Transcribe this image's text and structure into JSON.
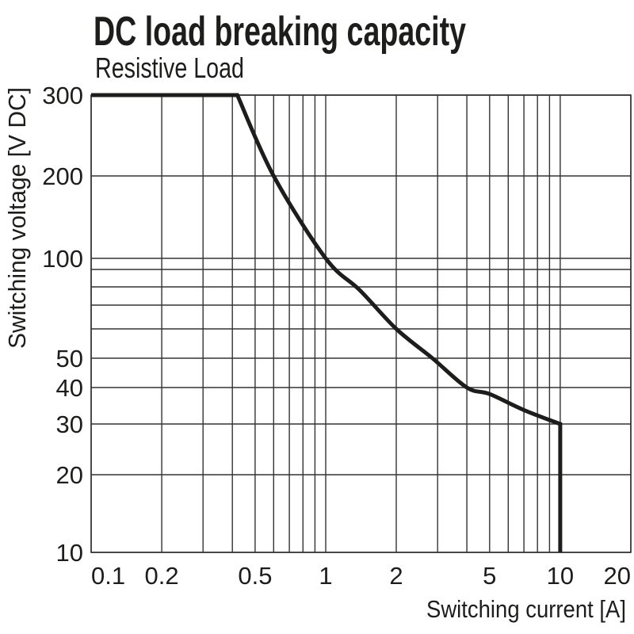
{
  "title": "DC load breaking capacity",
  "subtitle": "Resistive Load",
  "colors": {
    "text": "#1d1d1b",
    "grid": "#333333",
    "curve": "#1d1d1b",
    "background": "#ffffff"
  },
  "chart_data": {
    "type": "line",
    "title": "DC load breaking capacity",
    "subtitle": "Resistive Load",
    "grid": true,
    "legend": false,
    "x_axis": {
      "label": "Switching current [A]",
      "scale": "log",
      "range": [
        0.1,
        20
      ],
      "tick_values": [
        0.1,
        0.2,
        0.5,
        1,
        2,
        5,
        10,
        20
      ],
      "tick_labels": [
        "0.1",
        "0.2",
        "0.5",
        "1",
        "2",
        "5",
        "10",
        "20"
      ],
      "minor_gridlines": [
        0.3,
        0.4,
        0.6,
        0.7,
        0.8,
        0.9,
        3,
        4,
        6,
        7,
        8,
        9
      ]
    },
    "y_axis": {
      "label": "Switching voltage [V DC]",
      "scale": "log",
      "range": [
        10,
        300
      ],
      "tick_values": [
        10,
        20,
        30,
        40,
        50,
        100,
        200,
        300
      ],
      "tick_labels": [
        "10",
        "20",
        "30",
        "40",
        "50",
        "100",
        "200",
        "300"
      ],
      "minor_gridlines": [
        60,
        70,
        80,
        90
      ]
    },
    "series": [
      {
        "name": "Resistive Load breaking capacity",
        "points": [
          [
            0.1,
            300
          ],
          [
            0.42,
            300
          ],
          [
            0.6,
            200
          ],
          [
            1,
            100
          ],
          [
            1.4,
            78
          ],
          [
            2,
            60
          ],
          [
            2.85,
            50
          ],
          [
            4,
            40
          ],
          [
            5,
            38
          ],
          [
            7,
            33.5
          ],
          [
            10,
            30
          ],
          [
            10,
            10
          ]
        ]
      }
    ]
  }
}
